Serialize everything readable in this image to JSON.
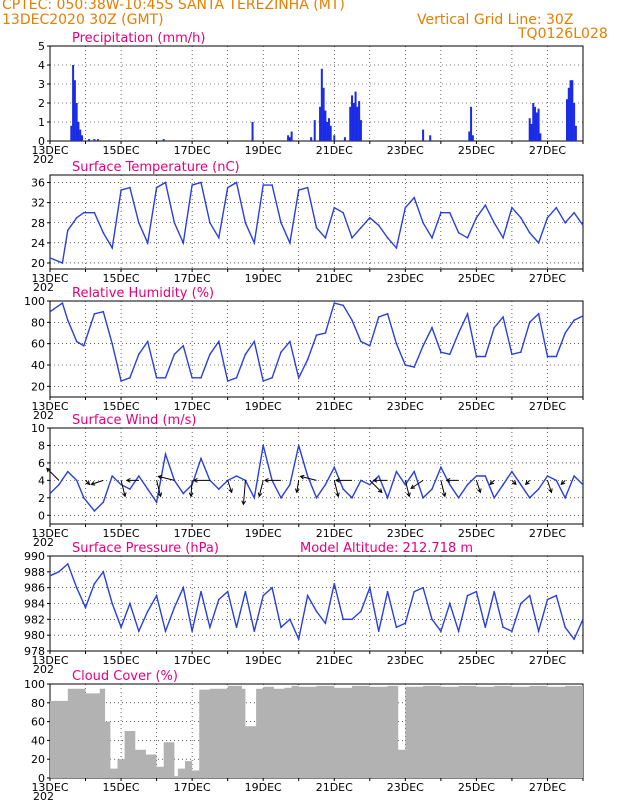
{
  "header": {
    "line1": "CPTEC:   050:38W-10:45S   SANTA TEREZINHA (MT)",
    "line2_left": "13DEC2020 30Z (GMT)",
    "line2_right": "Vertical Grid Line: 30Z",
    "line3_right": "TQ0126L028"
  },
  "x_axis": {
    "range_days": [
      13,
      28
    ],
    "tick_days": [
      13,
      15,
      17,
      19,
      21,
      23,
      25,
      27
    ],
    "tick_labels": [
      "13DEC",
      "15DEC",
      "17DEC",
      "19DEC",
      "21DEC",
      "23DEC",
      "25DEC",
      "27DEC"
    ],
    "clipped_year_label": "202"
  },
  "colors": {
    "series": "#2a3fe0",
    "bar": "#1a2be6",
    "cloud": "#b2b2b2",
    "title": "#e6007e",
    "header": "#e67e00",
    "wind_arrow": "#000000"
  },
  "chart_data": [
    {
      "type": "bar",
      "title": "Precipitation (mm/h)",
      "ylim": [
        0,
        5
      ],
      "yticks": [
        0,
        1,
        2,
        3,
        4,
        5
      ],
      "x_days": [
        13.6,
        13.65,
        13.7,
        13.75,
        13.8,
        13.85,
        13.9,
        14.1,
        14.25,
        14.35,
        16.2,
        18.7,
        19.7,
        19.75,
        19.8,
        20.35,
        20.45,
        20.6,
        20.65,
        20.7,
        20.75,
        20.8,
        20.85,
        20.9,
        21.0,
        21.3,
        21.45,
        21.5,
        21.55,
        21.6,
        21.65,
        21.7,
        21.75,
        23.5,
        23.7,
        24.8,
        24.85,
        24.9,
        26.5,
        26.55,
        26.6,
        26.65,
        26.7,
        26.75,
        26.8,
        27.55,
        27.6,
        27.65,
        27.7,
        27.75,
        27.8
      ],
      "values": [
        0.8,
        4.0,
        3.2,
        2.0,
        1.0,
        0.6,
        0.3,
        0.1,
        0.1,
        0.1,
        0.1,
        1.0,
        0.3,
        0.2,
        0.5,
        0.2,
        1.1,
        1.8,
        3.8,
        2.8,
        1.6,
        1.0,
        1.2,
        0.8,
        0.3,
        0.2,
        1.8,
        2.4,
        2.0,
        2.6,
        1.8,
        2.1,
        1.1,
        0.6,
        0.3,
        0.5,
        1.8,
        0.3,
        1.2,
        0.9,
        2.0,
        1.8,
        1.5,
        1.7,
        0.4,
        2.2,
        2.8,
        3.2,
        3.2,
        2.0,
        0.8
      ]
    },
    {
      "type": "line",
      "title": "Surface Temperature (nC)",
      "ylim": [
        18.8,
        37.5
      ],
      "yticks": [
        20,
        24,
        28,
        32,
        36
      ],
      "x": [
        13.0,
        13.35,
        13.5,
        13.75,
        13.95,
        14.25,
        14.5,
        14.75,
        15.0,
        15.25,
        15.5,
        15.75,
        16.0,
        16.25,
        16.5,
        16.75,
        17.0,
        17.25,
        17.5,
        17.75,
        18.0,
        18.25,
        18.5,
        18.75,
        19.0,
        19.25,
        19.5,
        19.75,
        20.0,
        20.25,
        20.5,
        20.75,
        21.0,
        21.25,
        21.5,
        21.75,
        22.0,
        22.25,
        22.5,
        22.75,
        23.0,
        23.25,
        23.5,
        23.75,
        24.0,
        24.25,
        24.5,
        24.75,
        25.0,
        25.25,
        25.5,
        25.75,
        26.0,
        26.25,
        26.5,
        26.75,
        27.0,
        27.25,
        27.5,
        27.75,
        28.0
      ],
      "values": [
        21,
        20,
        26.5,
        29,
        30,
        30,
        26,
        23,
        34.5,
        35,
        28,
        24,
        35,
        36,
        28,
        24,
        35.5,
        36,
        28,
        25,
        35,
        36,
        28,
        24,
        35.5,
        35.5,
        28,
        24,
        34.5,
        35,
        27,
        25,
        31,
        30,
        25,
        27,
        29,
        27.5,
        25,
        23,
        31,
        33,
        28,
        25,
        30,
        30,
        26,
        25,
        29,
        31.5,
        28,
        25,
        31,
        29,
        26,
        24,
        29,
        31,
        28,
        30,
        27.5
      ]
    },
    {
      "type": "line",
      "title": "Relative Humidity (%)",
      "ylim": [
        10,
        100
      ],
      "yticks": [
        20,
        40,
        60,
        80,
        100
      ],
      "x": [
        13.0,
        13.35,
        13.5,
        13.75,
        13.95,
        14.25,
        14.5,
        14.75,
        15.0,
        15.25,
        15.5,
        15.75,
        16.0,
        16.25,
        16.5,
        16.75,
        17.0,
        17.25,
        17.5,
        17.75,
        18.0,
        18.25,
        18.5,
        18.75,
        19.0,
        19.25,
        19.5,
        19.75,
        20.0,
        20.25,
        20.5,
        20.75,
        21.0,
        21.25,
        21.5,
        21.75,
        22.0,
        22.25,
        22.5,
        22.75,
        23.0,
        23.25,
        23.5,
        23.75,
        24.0,
        24.25,
        24.5,
        24.75,
        25.0,
        25.25,
        25.5,
        25.75,
        26.0,
        26.25,
        26.5,
        26.75,
        27.0,
        27.25,
        27.5,
        27.75,
        28.0
      ],
      "values": [
        90,
        98,
        82,
        62,
        58,
        88,
        90,
        60,
        25,
        28,
        50,
        62,
        28,
        28,
        50,
        58,
        28,
        28,
        50,
        62,
        25,
        28,
        50,
        62,
        25,
        28,
        52,
        62,
        28,
        45,
        68,
        70,
        98,
        96,
        82,
        62,
        58,
        85,
        88,
        60,
        40,
        38,
        58,
        75,
        52,
        50,
        70,
        88,
        48,
        48,
        75,
        85,
        50,
        52,
        80,
        88,
        48,
        48,
        70,
        82,
        86
      ]
    },
    {
      "type": "line",
      "title": "Surface Wind (m/s)",
      "ylim": [
        -1,
        10
      ],
      "yticks": [
        0,
        2,
        4,
        6,
        8,
        10
      ],
      "x": [
        13.0,
        13.25,
        13.5,
        13.75,
        13.95,
        14.25,
        14.5,
        14.75,
        15.0,
        15.25,
        15.5,
        15.75,
        16.0,
        16.25,
        16.5,
        16.75,
        17.0,
        17.25,
        17.5,
        17.75,
        18.0,
        18.25,
        18.5,
        18.75,
        19.0,
        19.25,
        19.5,
        19.75,
        20.0,
        20.25,
        20.5,
        20.75,
        21.0,
        21.25,
        21.5,
        21.75,
        22.0,
        22.25,
        22.5,
        22.75,
        23.0,
        23.25,
        23.5,
        23.75,
        24.0,
        24.25,
        24.5,
        24.75,
        25.0,
        25.25,
        25.5,
        25.75,
        26.0,
        26.25,
        26.5,
        26.75,
        27.0,
        27.25,
        27.5,
        27.75,
        28.0
      ],
      "values": [
        2.5,
        3.5,
        5.0,
        4.0,
        2.0,
        0.5,
        1.5,
        4.5,
        3.5,
        3.0,
        4.5,
        3.0,
        1.5,
        7.0,
        4.0,
        2.5,
        3.5,
        6.5,
        4.0,
        3.0,
        4.0,
        4.5,
        4.0,
        2.0,
        8.0,
        4.0,
        2.0,
        3.5,
        8.0,
        4.5,
        2.0,
        3.5,
        5.5,
        3.0,
        2.0,
        4.0,
        3.5,
        4.5,
        2.0,
        5.0,
        3.5,
        5.0,
        2.0,
        3.0,
        5.5,
        3.5,
        2.0,
        3.5,
        4.5,
        4.5,
        2.0,
        3.5,
        5.0,
        3.5,
        2.0,
        3.0,
        4.5,
        4.0,
        2.0,
        4.5,
        3.5
      ],
      "arrows": {
        "x_days": [
          13.25,
          14.0,
          14.5,
          15.0,
          15.5,
          16.0,
          16.5,
          17.0,
          17.5,
          18.0,
          18.5,
          19.0,
          19.5,
          20.0,
          20.5,
          21.0,
          21.5,
          22.0,
          22.5,
          23.0,
          23.5,
          24.0,
          24.5,
          25.0,
          25.5,
          26.0,
          26.5,
          27.0,
          27.5
        ],
        "u_ms": [
          -3,
          1,
          -3,
          1,
          -3,
          1,
          -4,
          -0.3,
          -4,
          1,
          -0.5,
          -1,
          -4,
          -0.5,
          -4,
          1,
          -4,
          3,
          -3.5,
          1,
          -3,
          1,
          -3,
          1,
          -1,
          1,
          -1,
          1,
          -1
        ],
        "v_ms": [
          3,
          -1,
          -1,
          -4,
          0,
          -4,
          1,
          -4,
          0,
          -3,
          -6,
          -4,
          0,
          -3,
          1,
          -4,
          0,
          -3,
          0,
          -4,
          -2,
          -4,
          0,
          -3,
          -1,
          -1,
          -1,
          -3,
          -1
        ]
      }
    },
    {
      "type": "line",
      "title": "Surface Pressure (hPa)",
      "annotation": "Model Altitude: 212.718 m",
      "ylim": [
        978,
        990
      ],
      "yticks": [
        978,
        980,
        982,
        984,
        986,
        988,
        990
      ],
      "x": [
        13.0,
        13.25,
        13.5,
        13.75,
        14.0,
        14.25,
        14.5,
        14.75,
        15.0,
        15.25,
        15.5,
        15.75,
        16.0,
        16.25,
        16.5,
        16.75,
        17.0,
        17.25,
        17.5,
        17.75,
        18.0,
        18.25,
        18.5,
        18.75,
        19.0,
        19.25,
        19.5,
        19.75,
        20.0,
        20.25,
        20.5,
        20.75,
        21.0,
        21.25,
        21.5,
        21.75,
        22.0,
        22.25,
        22.5,
        22.75,
        23.0,
        23.25,
        23.5,
        23.75,
        24.0,
        24.25,
        24.5,
        24.75,
        25.0,
        25.25,
        25.5,
        25.75,
        26.0,
        26.25,
        26.5,
        26.75,
        27.0,
        27.25,
        27.5,
        27.75,
        28.0
      ],
      "values": [
        987.5,
        988,
        989,
        986,
        983.5,
        986.5,
        988,
        984,
        981,
        984,
        980.5,
        983,
        985,
        980.5,
        983.5,
        986,
        980.5,
        985.5,
        981,
        984.5,
        985.5,
        981,
        985.5,
        980.5,
        985,
        986,
        981,
        982,
        979.5,
        985,
        983,
        981.5,
        986.5,
        982,
        982,
        983,
        986,
        980.5,
        985.5,
        981,
        981.5,
        985.5,
        986,
        982,
        980.5,
        984,
        980.5,
        985,
        985.5,
        981,
        985.5,
        981,
        980.5,
        984,
        985,
        980.5,
        984.5,
        985,
        981,
        979.5,
        982
      ]
    },
    {
      "type": "bar",
      "title": "Cloud Cover (%)",
      "ylim": [
        0,
        100
      ],
      "yticks": [
        0,
        20,
        40,
        60,
        80,
        100
      ],
      "x": [
        13.0,
        13.5,
        14.0,
        14.4,
        14.55,
        14.7,
        14.9,
        15.1,
        15.4,
        15.7,
        16.0,
        16.2,
        16.5,
        16.6,
        16.8,
        17.0,
        17.2,
        17.5,
        18.0,
        18.4,
        18.5,
        18.8,
        19.0,
        19.3,
        19.6,
        19.8,
        20.0,
        20.5,
        21.0,
        21.5,
        22.0,
        22.5,
        22.8,
        23.0,
        23.5,
        24.0,
        24.5,
        25.0,
        25.5,
        26.0,
        26.5,
        27.0,
        27.5,
        28.0
      ],
      "values": [
        82,
        95,
        90,
        95,
        60,
        10,
        20,
        50,
        30,
        25,
        12,
        38,
        2,
        10,
        18,
        8,
        94,
        95,
        98,
        95,
        55,
        95,
        97,
        95,
        96,
        98,
        97,
        98,
        96,
        98,
        97,
        98,
        30,
        97,
        98,
        97,
        98,
        97,
        98,
        97,
        98,
        97,
        98,
        97
      ]
    }
  ]
}
